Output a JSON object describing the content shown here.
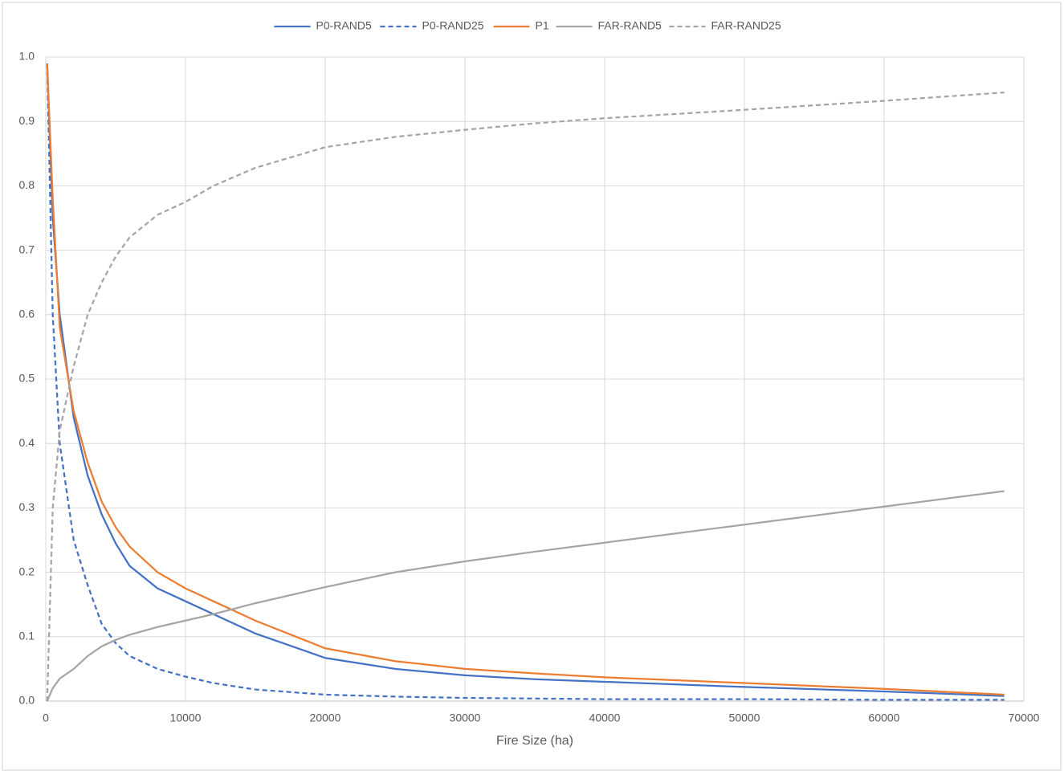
{
  "chart_data": {
    "type": "line",
    "x_label": "Fire Size (ha)",
    "x": [
      100,
      500,
      1000,
      2000,
      3000,
      4000,
      5000,
      6000,
      8000,
      10000,
      12000,
      15000,
      20000,
      25000,
      30000,
      35000,
      40000,
      50000,
      60000,
      68600
    ],
    "series": [
      {
        "name": "P0-RAND5",
        "color": "#4472c4",
        "dash": false,
        "values": [
          0.99,
          0.75,
          0.6,
          0.44,
          0.35,
          0.29,
          0.245,
          0.21,
          0.175,
          0.155,
          0.135,
          0.105,
          0.067,
          0.05,
          0.04,
          0.034,
          0.03,
          0.022,
          0.015,
          0.008
        ]
      },
      {
        "name": "P0-RAND25",
        "color": "#4472c4",
        "dash": true,
        "values": [
          0.99,
          0.6,
          0.4,
          0.25,
          0.18,
          0.12,
          0.09,
          0.07,
          0.05,
          0.038,
          0.028,
          0.018,
          0.01,
          0.007,
          0.005,
          0.004,
          0.003,
          0.003,
          0.002,
          0.002
        ]
      },
      {
        "name": "P1",
        "color": "#ed7d31",
        "dash": false,
        "values": [
          0.99,
          0.78,
          0.58,
          0.45,
          0.37,
          0.31,
          0.27,
          0.24,
          0.2,
          0.175,
          0.155,
          0.125,
          0.082,
          0.062,
          0.05,
          0.043,
          0.037,
          0.028,
          0.019,
          0.01
        ]
      },
      {
        "name": "FAR-RAND5",
        "color": "#a5a5a5",
        "dash": false,
        "values": [
          0.0,
          0.02,
          0.035,
          0.05,
          0.07,
          0.085,
          0.095,
          0.103,
          0.115,
          0.125,
          0.135,
          0.152,
          0.177,
          0.2,
          0.217,
          0.232,
          0.246,
          0.274,
          0.302,
          0.326
        ]
      },
      {
        "name": "FAR-RAND25",
        "color": "#a5a5a5",
        "dash": true,
        "values": [
          0.0,
          0.3,
          0.42,
          0.52,
          0.6,
          0.65,
          0.69,
          0.72,
          0.755,
          0.775,
          0.8,
          0.828,
          0.86,
          0.876,
          0.887,
          0.897,
          0.905,
          0.918,
          0.932,
          0.945
        ]
      }
    ],
    "xlim": [
      0,
      70000
    ],
    "xticks": [
      0,
      10000,
      20000,
      30000,
      40000,
      50000,
      60000,
      70000
    ],
    "ylim": [
      0,
      1
    ],
    "yticks": [
      {
        "value": 0,
        "label": "0.0"
      },
      0.1,
      0.2,
      0.3,
      0.4,
      0.5,
      0.6,
      0.7,
      0.8,
      0.9,
      {
        "value": 1,
        "label": "1.0"
      }
    ],
    "grid": true,
    "legend": "top"
  }
}
